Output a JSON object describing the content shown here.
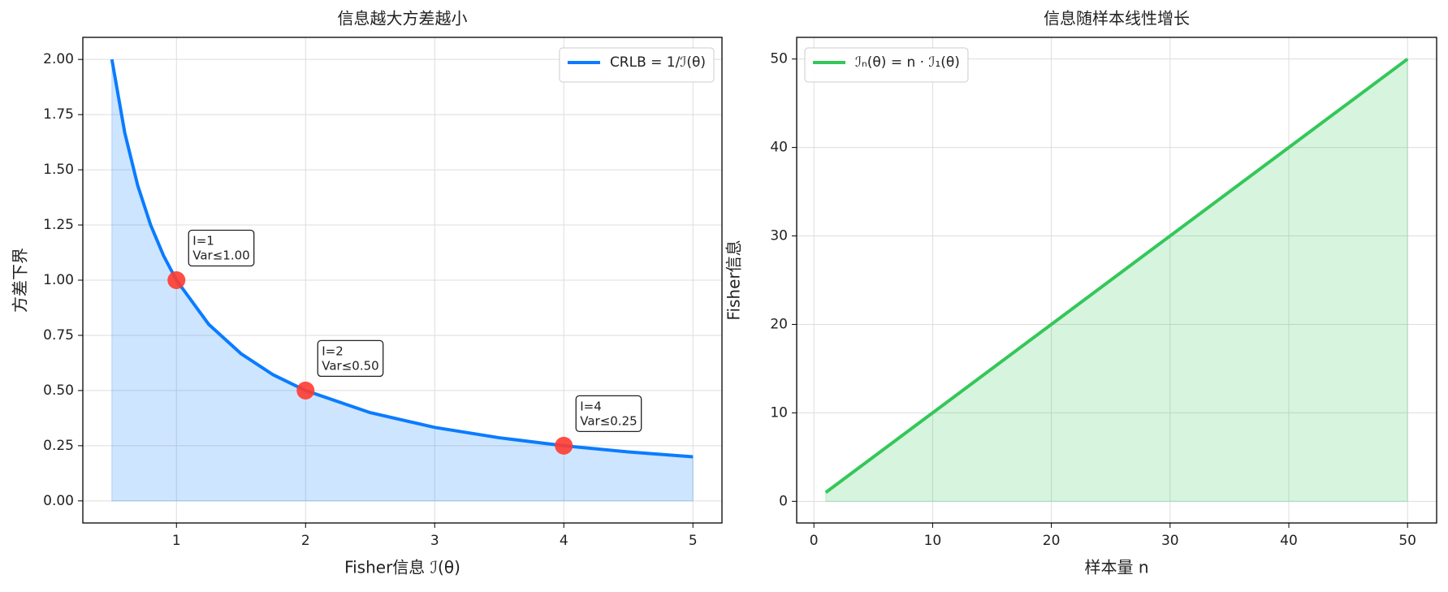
{
  "chart_data": [
    {
      "type": "line",
      "title": "信息越大方差越小",
      "xlabel": "Fisher信息 ℐ(θ)",
      "ylabel": "方差下界",
      "xlim": [
        0.275,
        5.225
      ],
      "ylim": [
        -0.1,
        2.1
      ],
      "xticks": [
        1,
        2,
        3,
        4,
        5
      ],
      "yticks": [
        {
          "value": 0,
          "label": "0.00"
        },
        {
          "value": 0.25,
          "label": "0.25"
        },
        {
          "value": 0.5,
          "label": "0.50"
        },
        {
          "value": 0.75,
          "label": "0.75"
        },
        {
          "value": 1,
          "label": "1.00"
        },
        {
          "value": 1.25,
          "label": "1.25"
        },
        {
          "value": 1.5,
          "label": "1.50"
        },
        {
          "value": 1.75,
          "label": "1.75"
        },
        {
          "value": 2,
          "label": "2.00"
        }
      ],
      "grid": true,
      "legend": "upper right",
      "series": [
        {
          "name": "CRLB = 1/ℐ(θ)",
          "color": "#0a7cff",
          "fill": true,
          "x": [
            0.5,
            0.6,
            0.7,
            0.8,
            0.9,
            1,
            1.25,
            1.5,
            1.75,
            2,
            2.5,
            3,
            3.5,
            4,
            4.5,
            5
          ],
          "values": [
            2,
            1.667,
            1.429,
            1.25,
            1.111,
            1,
            0.8,
            0.667,
            0.571,
            0.5,
            0.4,
            0.333,
            0.286,
            0.25,
            0.222,
            0.2
          ]
        },
        {
          "type": "scatter",
          "color": "#ff3b30",
          "x": [
            1,
            2,
            4
          ],
          "values": [
            1,
            0.5,
            0.25
          ],
          "annotations": [
            [
              "I=1",
              "Var≤1.00"
            ],
            [
              "I=2",
              "Var≤0.50"
            ],
            [
              "I=4",
              "Var≤0.25"
            ]
          ]
        }
      ]
    },
    {
      "type": "line",
      "title": "信息随样本线性增长",
      "xlabel": "样本量 n",
      "ylabel": "Fisher信息",
      "xlim": [
        -1.45,
        52.45
      ],
      "ylim": [
        -2.45,
        52.45
      ],
      "xticks": [
        0,
        10,
        20,
        30,
        40,
        50
      ],
      "yticks": [
        0,
        10,
        20,
        30,
        40,
        50
      ],
      "grid": true,
      "legend": "upper left",
      "series": [
        {
          "name": "ℐₙ(θ) = n · ℐ₁(θ)",
          "color": "#34c759",
          "fill": true,
          "x": [
            1,
            50
          ],
          "values": [
            1,
            50
          ]
        }
      ]
    }
  ]
}
